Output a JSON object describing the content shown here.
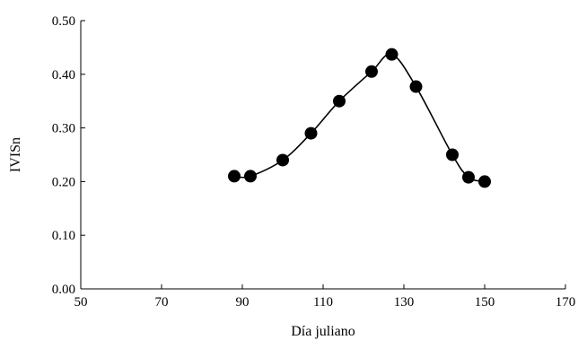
{
  "chart_data": {
    "type": "scatter",
    "xlabel": "Día juliano",
    "ylabel": "IVISn",
    "xlim": [
      50,
      170
    ],
    "ylim": [
      0.0,
      0.5
    ],
    "x_ticks": [
      50,
      70,
      90,
      110,
      130,
      150,
      170
    ],
    "y_ticks": [
      0.0,
      0.1,
      0.2,
      0.3,
      0.4,
      0.5
    ],
    "x_tick_labels": [
      "50",
      "70",
      "90",
      "110",
      "130",
      "150",
      "170"
    ],
    "y_tick_labels": [
      "0.00",
      "0.10",
      "0.20",
      "0.30",
      "0.40",
      "0.50"
    ],
    "grid": false,
    "series": [
      {
        "marker": "filled-circle",
        "line": "smooth",
        "color": "#000000",
        "x": [
          88,
          92,
          100,
          107,
          114,
          122,
          127,
          133,
          142,
          146,
          150
        ],
        "y": [
          0.21,
          0.21,
          0.24,
          0.29,
          0.35,
          0.405,
          0.437,
          0.377,
          0.25,
          0.208,
          0.2
        ]
      }
    ]
  }
}
